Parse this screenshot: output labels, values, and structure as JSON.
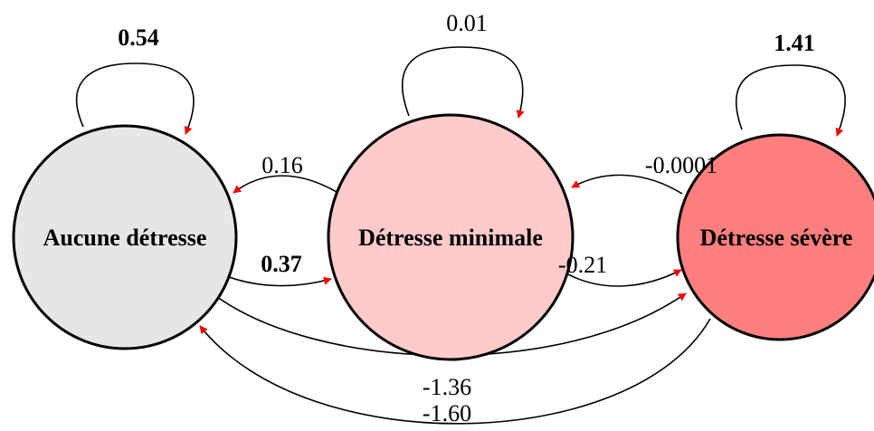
{
  "nodes": [
    {
      "id": "none",
      "label": "Aucune détresse",
      "fill": "#e6e6e6"
    },
    {
      "id": "minimal",
      "label": "Détresse minimale",
      "fill": "#ffcaca"
    },
    {
      "id": "severe",
      "label": "Détresse sévère",
      "fill": "#ff7f7f"
    }
  ],
  "edges": [
    {
      "id": "self-none",
      "from": "none",
      "to": "none",
      "label": "0.54",
      "bold": true
    },
    {
      "id": "self-minimal",
      "from": "minimal",
      "to": "minimal",
      "label": "0.01",
      "bold": false
    },
    {
      "id": "self-severe",
      "from": "severe",
      "to": "severe",
      "label": "1.41",
      "bold": true
    },
    {
      "id": "minimal-to-none",
      "from": "minimal",
      "to": "none",
      "label": "0.16",
      "bold": false
    },
    {
      "id": "none-to-minimal",
      "from": "none",
      "to": "minimal",
      "label": "0.37",
      "bold": true
    },
    {
      "id": "severe-to-minimal",
      "from": "severe",
      "to": "minimal",
      "label": "-0.0001",
      "bold": false
    },
    {
      "id": "minimal-to-severe",
      "from": "minimal",
      "to": "severe",
      "label": "-0.21",
      "bold": false
    },
    {
      "id": "none-to-severe",
      "from": "none",
      "to": "severe",
      "label": "-1.36",
      "bold": false
    },
    {
      "id": "severe-to-none",
      "from": "severe",
      "to": "none",
      "label": "-1.60",
      "bold": false
    }
  ],
  "colors": {
    "arrowhead": "#ff0000",
    "stroke": "#000000"
  }
}
